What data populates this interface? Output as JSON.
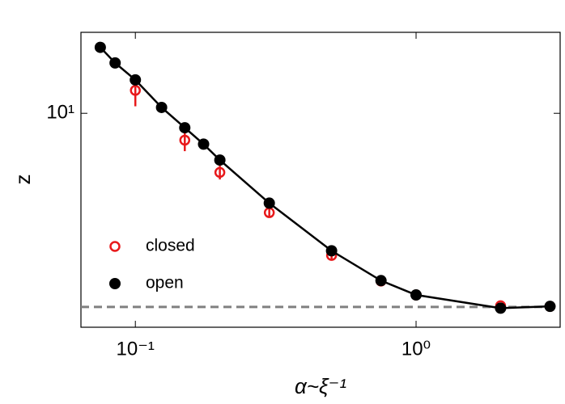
{
  "chart_data": {
    "type": "scatter",
    "x_label": "α~ξ⁻¹",
    "y_label": "z",
    "xlog": true,
    "ylog": true,
    "xlim": [
      0.064,
      3.26
    ],
    "ylim": [
      1.69,
      19.6
    ],
    "xticks": [
      {
        "value": 0.1,
        "label": "10⁻¹"
      },
      {
        "value": 1,
        "label": "10⁰"
      }
    ],
    "yticks": [
      {
        "value": 10,
        "label": "10¹"
      }
    ],
    "hline": {
      "value": 2,
      "color": "#808080"
    },
    "legend": "lower left",
    "series": [
      {
        "name": "closed",
        "color": "#e8191b",
        "marker": "open",
        "x": [
          0.1,
          0.15,
          0.2,
          0.3,
          0.5,
          0.75,
          1.0,
          2.0,
          3.0
        ],
        "values": [
          12.1,
          8.0,
          6.12,
          4.38,
          3.07,
          2.48,
          2.21,
          2.02,
          2.01
        ],
        "errors": [
          1.5,
          0.7,
          0.35,
          0.15,
          0.1,
          0.06,
          0.05,
          0.03,
          0.02
        ]
      },
      {
        "name": "open",
        "color": "#000000",
        "marker": "filled",
        "line": true,
        "x": [
          0.075,
          0.0847,
          0.1,
          0.124,
          0.15,
          0.175,
          0.2,
          0.3,
          0.5,
          0.75,
          1.0,
          2.0,
          3.0
        ],
        "values": [
          17.3,
          15.2,
          13.2,
          10.5,
          8.87,
          7.74,
          6.78,
          4.74,
          3.19,
          2.49,
          2.21,
          1.98,
          2.01
        ]
      }
    ]
  }
}
